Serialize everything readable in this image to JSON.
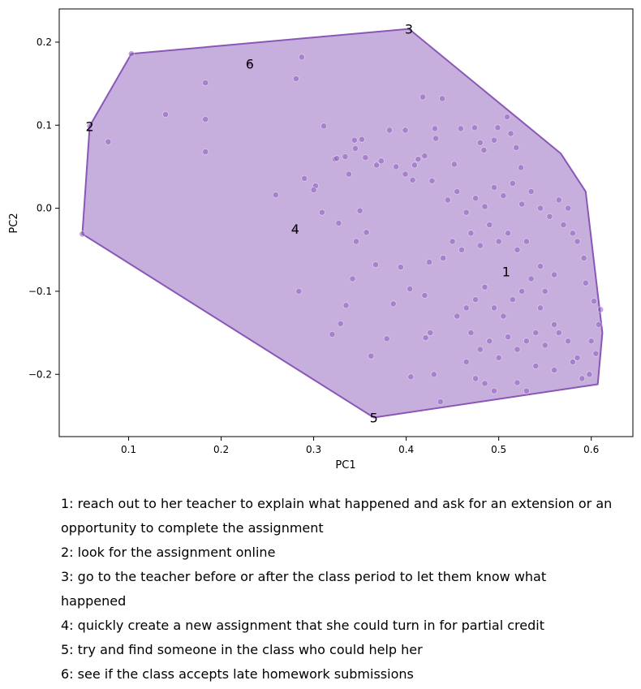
{
  "chart_data": {
    "type": "scatter",
    "xlabel": "PC1",
    "ylabel": "PC2",
    "xlim": [
      0.025,
      0.645
    ],
    "ylim": [
      -0.275,
      0.24
    ],
    "xticks": [
      0.1,
      0.2,
      0.3,
      0.4,
      0.5,
      0.6
    ],
    "yticks": [
      -0.2,
      -0.1,
      0.0,
      0.1,
      0.2
    ],
    "xtick_labels": [
      "0.1",
      "0.2",
      "0.3",
      "0.4",
      "0.5",
      "0.6"
    ],
    "ytick_labels": [
      "−0.2",
      "−0.1",
      "0.0",
      "0.1",
      "0.2"
    ],
    "grid": false,
    "colors": {
      "fill": "#c6afdc",
      "edge": "#8a56b7",
      "point": "#8e5bbd"
    },
    "hull": [
      [
        0.403,
        0.216
      ],
      [
        0.567,
        0.066
      ],
      [
        0.594,
        0.02
      ],
      [
        0.612,
        -0.15
      ],
      [
        0.607,
        -0.212
      ],
      [
        0.365,
        -0.252
      ],
      [
        0.05,
        -0.031
      ],
      [
        0.058,
        0.099
      ],
      [
        0.103,
        0.186
      ]
    ],
    "labeled_points": [
      {
        "label": "1",
        "x": 0.508,
        "y": -0.076
      },
      {
        "label": "2",
        "x": 0.058,
        "y": 0.099
      },
      {
        "label": "3",
        "x": 0.403,
        "y": 0.216
      },
      {
        "label": "4",
        "x": 0.28,
        "y": -0.025
      },
      {
        "label": "5",
        "x": 0.365,
        "y": -0.252
      },
      {
        "label": "6",
        "x": 0.231,
        "y": 0.174
      }
    ],
    "points": [
      [
        0.103,
        0.186
      ],
      [
        0.058,
        0.099
      ],
      [
        0.05,
        -0.031
      ],
      [
        0.078,
        0.08
      ],
      [
        0.14,
        0.113
      ],
      [
        0.183,
        0.151
      ],
      [
        0.183,
        0.107
      ],
      [
        0.183,
        0.068
      ],
      [
        0.231,
        0.174
      ],
      [
        0.28,
        -0.025
      ],
      [
        0.281,
        0.156
      ],
      [
        0.287,
        0.182
      ],
      [
        0.259,
        0.016
      ],
      [
        0.284,
        -0.1
      ],
      [
        0.29,
        0.036
      ],
      [
        0.302,
        0.027
      ],
      [
        0.309,
        -0.005
      ],
      [
        0.311,
        0.099
      ],
      [
        0.3,
        0.022
      ],
      [
        0.323,
        0.059
      ],
      [
        0.325,
        0.06
      ],
      [
        0.334,
        0.062
      ],
      [
        0.345,
        0.072
      ],
      [
        0.344,
        0.082
      ],
      [
        0.352,
        0.083
      ],
      [
        0.356,
        0.061
      ],
      [
        0.338,
        0.041
      ],
      [
        0.327,
        -0.018
      ],
      [
        0.32,
        -0.152
      ],
      [
        0.329,
        -0.139
      ],
      [
        0.335,
        -0.117
      ],
      [
        0.342,
        -0.085
      ],
      [
        0.35,
        -0.003
      ],
      [
        0.346,
        -0.04
      ],
      [
        0.357,
        -0.029
      ],
      [
        0.362,
        -0.178
      ],
      [
        0.367,
        -0.068
      ],
      [
        0.368,
        0.052
      ],
      [
        0.373,
        0.057
      ],
      [
        0.382,
        0.094
      ],
      [
        0.379,
        -0.157
      ],
      [
        0.386,
        -0.115
      ],
      [
        0.389,
        0.05
      ],
      [
        0.394,
        -0.071
      ],
      [
        0.399,
        0.041
      ],
      [
        0.399,
        0.094
      ],
      [
        0.404,
        -0.097
      ],
      [
        0.405,
        -0.203
      ],
      [
        0.407,
        0.034
      ],
      [
        0.409,
        0.052
      ],
      [
        0.413,
        0.059
      ],
      [
        0.418,
        0.134
      ],
      [
        0.42,
        0.063
      ],
      [
        0.42,
        -0.105
      ],
      [
        0.421,
        -0.156
      ],
      [
        0.425,
        -0.065
      ],
      [
        0.426,
        -0.15
      ],
      [
        0.428,
        0.033
      ],
      [
        0.43,
        -0.2
      ],
      [
        0.431,
        0.096
      ],
      [
        0.432,
        0.084
      ],
      [
        0.437,
        -0.233
      ],
      [
        0.439,
        0.132
      ],
      [
        0.452,
        0.053
      ],
      [
        0.459,
        0.096
      ],
      [
        0.474,
        0.097
      ],
      [
        0.48,
        0.079
      ],
      [
        0.484,
        0.07
      ],
      [
        0.485,
        -0.211
      ],
      [
        0.495,
        0.082
      ],
      [
        0.499,
        0.097
      ],
      [
        0.509,
        0.11
      ],
      [
        0.513,
        0.09
      ],
      [
        0.519,
        0.073
      ],
      [
        0.524,
        0.049
      ],
      [
        0.465,
        -0.185
      ],
      [
        0.475,
        -0.205
      ],
      [
        0.495,
        -0.22
      ],
      [
        0.52,
        -0.21
      ],
      [
        0.53,
        -0.22
      ],
      [
        0.54,
        -0.19
      ],
      [
        0.56,
        -0.195
      ],
      [
        0.58,
        -0.185
      ],
      [
        0.6,
        -0.16
      ],
      [
        0.605,
        -0.175
      ],
      [
        0.608,
        -0.14
      ],
      [
        0.61,
        -0.122
      ],
      [
        0.603,
        -0.112
      ],
      [
        0.594,
        -0.09
      ],
      [
        0.592,
        -0.06
      ],
      [
        0.585,
        -0.04
      ],
      [
        0.58,
        -0.03
      ],
      [
        0.56,
        -0.08
      ],
      [
        0.55,
        -0.1
      ],
      [
        0.545,
        -0.12
      ],
      [
        0.56,
        -0.14
      ],
      [
        0.575,
        -0.16
      ],
      [
        0.585,
        -0.18
      ],
      [
        0.59,
        -0.205
      ],
      [
        0.598,
        -0.2
      ],
      [
        0.47,
        -0.15
      ],
      [
        0.48,
        -0.17
      ],
      [
        0.49,
        -0.16
      ],
      [
        0.5,
        -0.18
      ],
      [
        0.51,
        -0.155
      ],
      [
        0.52,
        -0.17
      ],
      [
        0.53,
        -0.16
      ],
      [
        0.54,
        -0.15
      ],
      [
        0.55,
        -0.165
      ],
      [
        0.565,
        -0.15
      ],
      [
        0.455,
        -0.13
      ],
      [
        0.465,
        -0.12
      ],
      [
        0.475,
        -0.11
      ],
      [
        0.485,
        -0.095
      ],
      [
        0.495,
        -0.12
      ],
      [
        0.505,
        -0.13
      ],
      [
        0.515,
        -0.11
      ],
      [
        0.525,
        -0.1
      ],
      [
        0.535,
        -0.085
      ],
      [
        0.545,
        -0.07
      ],
      [
        0.44,
        -0.06
      ],
      [
        0.45,
        -0.04
      ],
      [
        0.46,
        -0.05
      ],
      [
        0.47,
        -0.03
      ],
      [
        0.48,
        -0.045
      ],
      [
        0.49,
        -0.02
      ],
      [
        0.5,
        -0.04
      ],
      [
        0.51,
        -0.03
      ],
      [
        0.52,
        -0.05
      ],
      [
        0.53,
        -0.04
      ],
      [
        0.445,
        0.01
      ],
      [
        0.455,
        0.02
      ],
      [
        0.465,
        -0.005
      ],
      [
        0.475,
        0.012
      ],
      [
        0.485,
        0.002
      ],
      [
        0.495,
        0.025
      ],
      [
        0.505,
        0.015
      ],
      [
        0.515,
        0.03
      ],
      [
        0.525,
        0.005
      ],
      [
        0.535,
        0.02
      ],
      [
        0.545,
        0.0
      ],
      [
        0.555,
        -0.01
      ],
      [
        0.565,
        0.01
      ],
      [
        0.57,
        -0.02
      ],
      [
        0.575,
        0.0
      ]
    ]
  },
  "legend": [
    "1: reach out to her teacher to explain what happened and ask for an extension or an opportunity to complete the assignment",
    "2: look for the assignment online",
    "3: go to the teacher before or after the class period to let them know what happened",
    "4: quickly create a new assignment that she could turn in for partial credit",
    "5: try and find someone in the class who could help her",
    "6: see if the class accepts late homework submissions"
  ]
}
